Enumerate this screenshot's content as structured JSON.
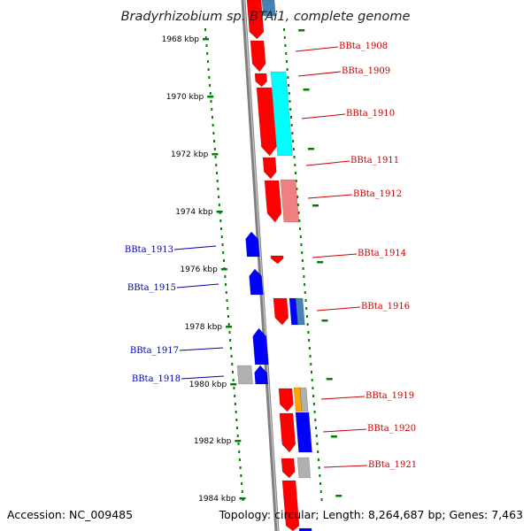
{
  "title": "Bradyrhizobium sp. BTAi1, complete genome",
  "footer": {
    "accession": "Accession: NC_009485",
    "topology": "Topology: circular; Length: 8,264,687 bp; Genes: 7,463"
  },
  "ruler": [
    "1968 kbp",
    "1970 kbp",
    "1972 kbp",
    "1974 kbp",
    "1976 kbp",
    "1978 kbp",
    "1980 kbp",
    "1982 kbp",
    "1984 kbp"
  ],
  "colors": {
    "red": "#ff0000",
    "blue": "#0000ff",
    "cyan": "#00ffff",
    "pink": "#f08080",
    "steel": "#4682b4",
    "orange": "#ffa500",
    "gray": "#b0b0b0",
    "backbone": "#808080",
    "tick": "#008000",
    "label_right": "#cc0000",
    "label_left": "#0000aa"
  },
  "labels_right": [
    "BBta_1908",
    "BBta_1909",
    "BBta_1910",
    "BBta_1911",
    "BBta_1912",
    "BBta_1914",
    "BBta_1916",
    "BBta_1919",
    "BBta_1920",
    "BBta_1921"
  ],
  "labels_left": [
    "BBta_1913",
    "BBta_1915",
    "BBta_1917",
    "BBta_1918"
  ]
}
